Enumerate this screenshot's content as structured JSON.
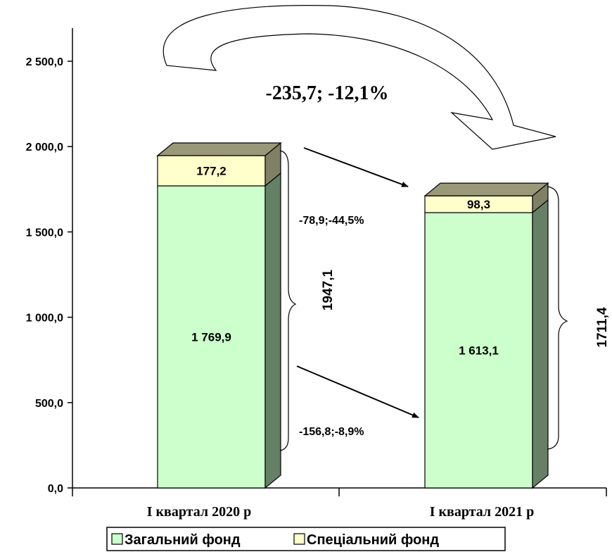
{
  "chart_data": {
    "type": "bar",
    "stacked": true,
    "categories": [
      "I квартал 2020 р",
      "I квартал 2021 р"
    ],
    "series": [
      {
        "name": "Загальний фонд",
        "values": [
          1769.9,
          1613.1
        ],
        "labels": [
          "1 769,9",
          "1 613,1"
        ],
        "color": "#ccffcc"
      },
      {
        "name": "Спеціальний фонд",
        "values": [
          177.2,
          98.3
        ],
        "labels": [
          "177,2",
          "98,3"
        ],
        "color": "#ffffcc"
      }
    ],
    "totals": [
      "1947,1",
      "1711,4"
    ],
    "y_ticks": [
      "0,0",
      "500,0",
      "1 000,0",
      "1 500,0",
      "2 000,0",
      "2 500,0"
    ],
    "ylim": [
      0,
      2500
    ],
    "annotations": {
      "total_change": "-235,7; -12,1%",
      "special_change": "-78,9;-44,5%",
      "general_change": "-156,8;-8,9%"
    },
    "legend_position": "bottom",
    "grid": false
  }
}
